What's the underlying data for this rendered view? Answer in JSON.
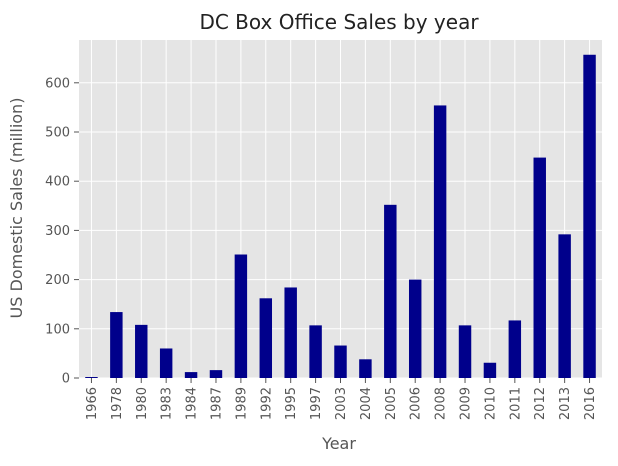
{
  "chart_data": {
    "type": "bar",
    "title": "DC Box Office Sales by year",
    "xlabel": "Year",
    "ylabel": "US Domestic Sales (million)",
    "categories": [
      "1966",
      "1978",
      "1980",
      "1983",
      "1984",
      "1987",
      "1989",
      "1992",
      "1995",
      "1997",
      "2003",
      "2004",
      "2005",
      "2006",
      "2008",
      "2009",
      "2010",
      "2011",
      "2012",
      "2013",
      "2016"
    ],
    "values": [
      2,
      134,
      108,
      60,
      12,
      16,
      251,
      162,
      184,
      107,
      66,
      38,
      352,
      200,
      554,
      107,
      31,
      117,
      448,
      292,
      657
    ],
    "ylim": [
      0,
      687
    ],
    "yticks": [
      0,
      100,
      200,
      300,
      400,
      500,
      600
    ],
    "grid": true,
    "legend": "none",
    "colors": {
      "bar": "#00008b",
      "plot_background": "#e5e5e5",
      "grid": "#ffffff"
    }
  }
}
